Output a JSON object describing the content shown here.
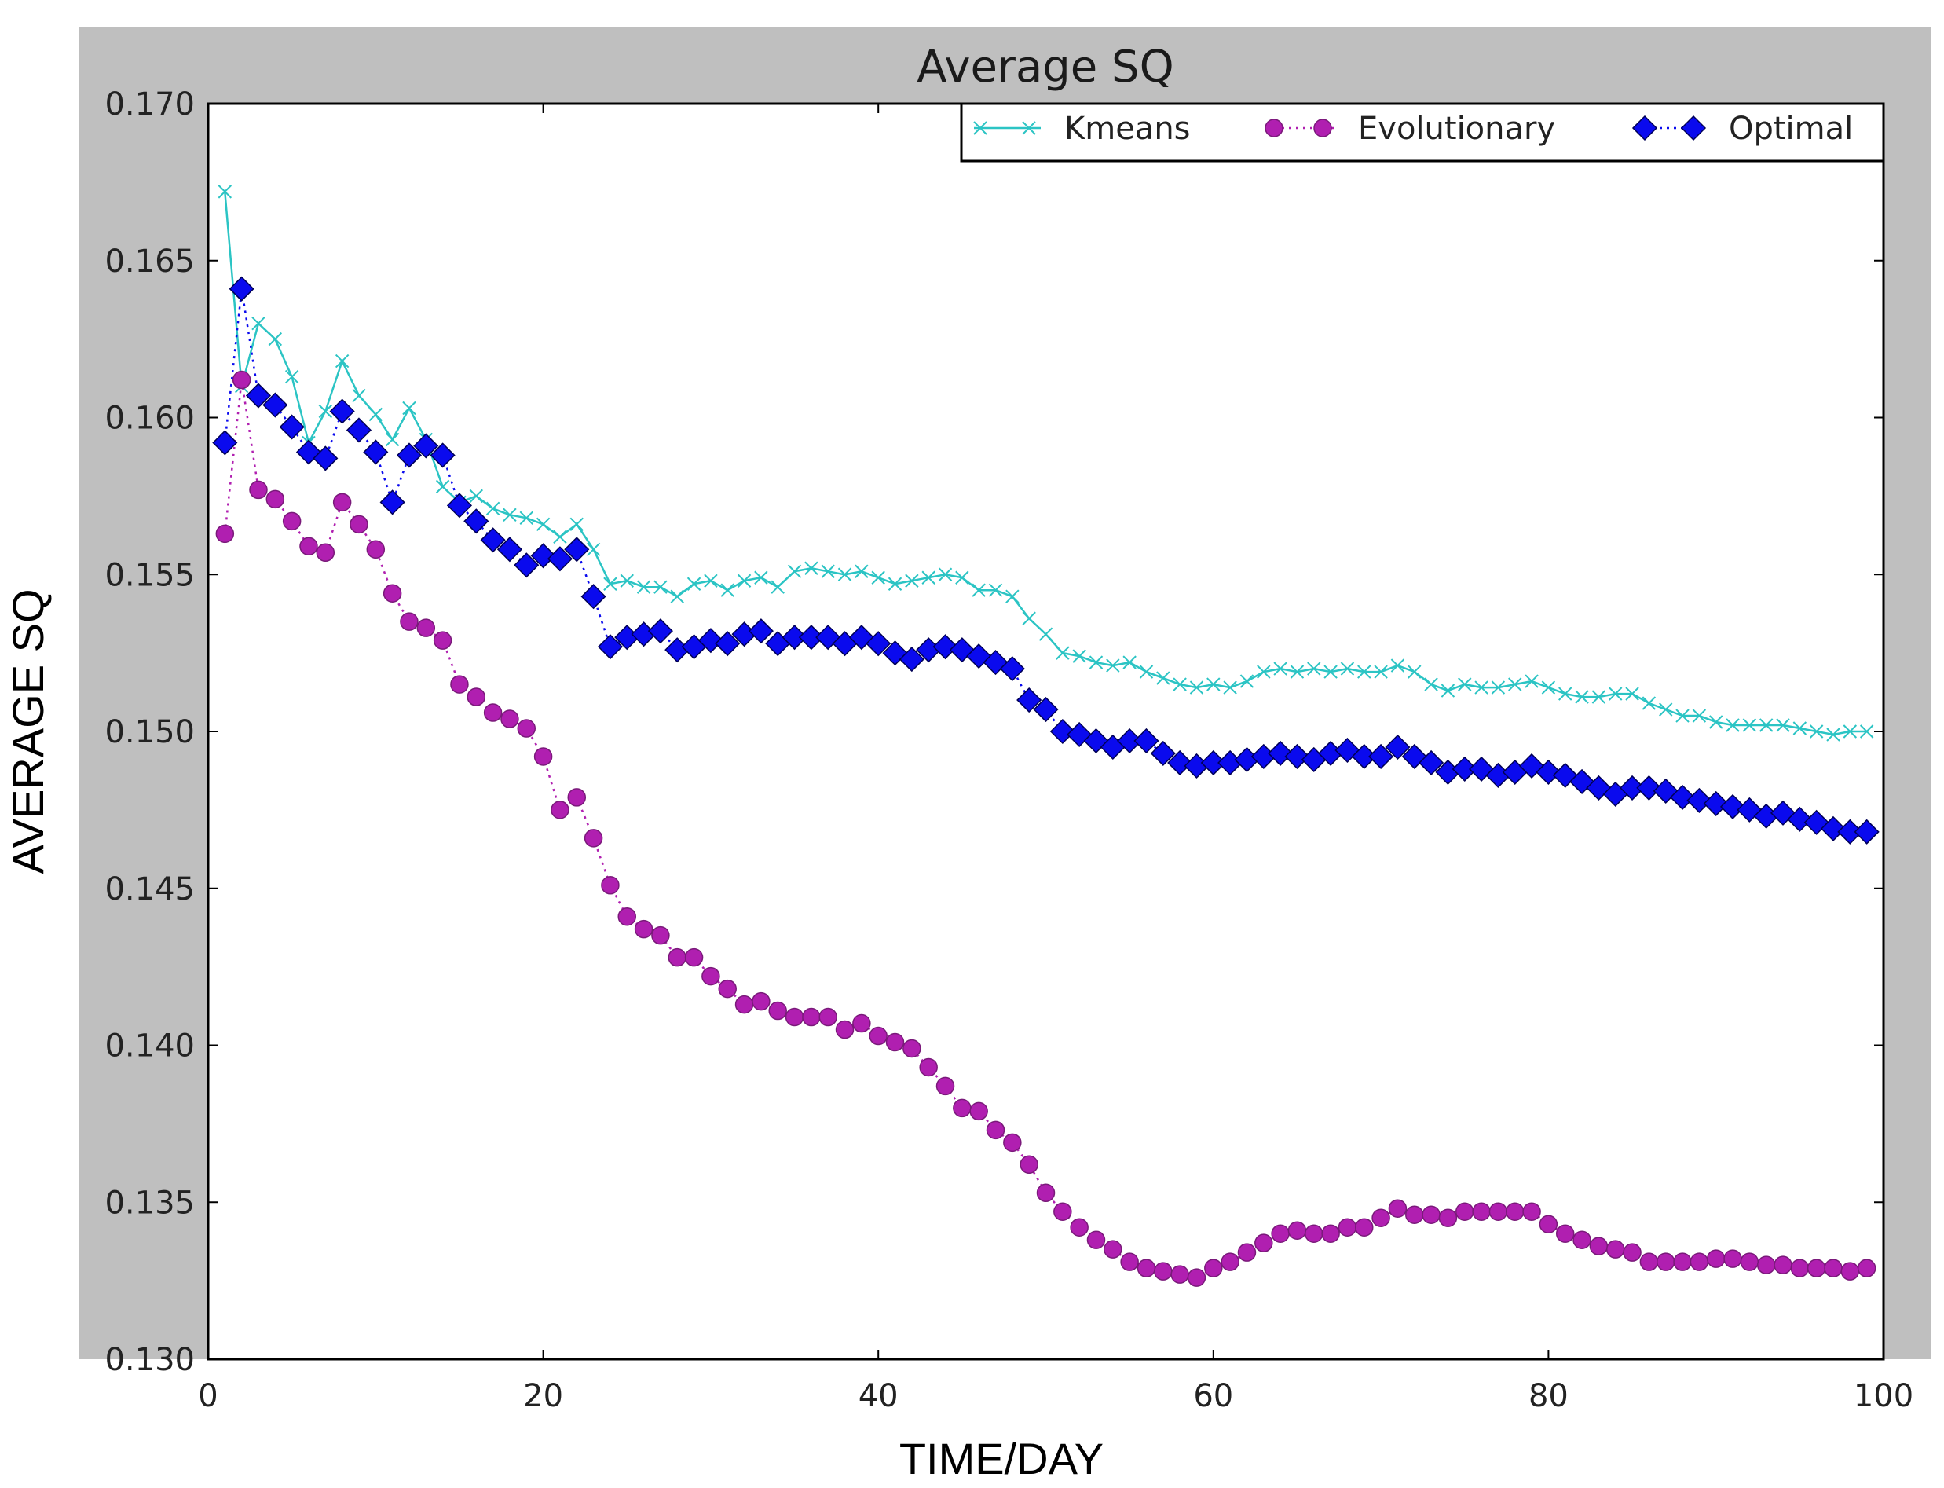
{
  "chart_data": {
    "type": "line",
    "title": "Average SQ",
    "xlabel": "TIME/DAY",
    "ylabel": "AVERAGE SQ",
    "xlim": [
      0,
      100
    ],
    "ylim": [
      0.13,
      0.17
    ],
    "xticks": [
      0,
      20,
      40,
      60,
      80,
      100
    ],
    "xtick_labels": [
      "0",
      "20",
      "40",
      "60",
      "80",
      "100"
    ],
    "yticks": [
      0.13,
      0.135,
      0.14,
      0.145,
      0.15,
      0.155,
      0.16,
      0.165,
      0.17
    ],
    "ytick_labels": [
      "0.130",
      "0.135",
      "0.140",
      "0.145",
      "0.150",
      "0.155",
      "0.160",
      "0.165",
      "0.170"
    ],
    "grid": false,
    "legend_position": "top-right",
    "x": [
      1,
      2,
      3,
      4,
      5,
      6,
      7,
      8,
      9,
      10,
      11,
      12,
      13,
      14,
      15,
      16,
      17,
      18,
      19,
      20,
      21,
      22,
      23,
      24,
      25,
      26,
      27,
      28,
      29,
      30,
      31,
      32,
      33,
      34,
      35,
      36,
      37,
      38,
      39,
      40,
      41,
      42,
      43,
      44,
      45,
      46,
      47,
      48,
      49,
      50,
      51,
      52,
      53,
      54,
      55,
      56,
      57,
      58,
      59,
      60,
      61,
      62,
      63,
      64,
      65,
      66,
      67,
      68,
      69,
      70,
      71,
      72,
      73,
      74,
      75,
      76,
      77,
      78,
      79,
      80,
      81,
      82,
      83,
      84,
      85,
      86,
      87,
      88,
      89,
      90,
      91,
      92,
      93,
      94,
      95,
      96,
      97,
      98,
      99
    ],
    "series": [
      {
        "name": "Kmeans",
        "color": "#2bc4c4",
        "marker": "x",
        "linestyle": "solid",
        "values": [
          0.1672,
          0.161,
          0.163,
          0.1625,
          0.1613,
          0.1592,
          0.1602,
          0.1618,
          0.1607,
          0.1601,
          0.1593,
          0.1603,
          0.1593,
          0.1578,
          0.1573,
          0.1575,
          0.1571,
          0.1569,
          0.1568,
          0.1566,
          0.1562,
          0.1566,
          0.1558,
          0.1547,
          0.1548,
          0.1546,
          0.1546,
          0.1543,
          0.1547,
          0.1548,
          0.1545,
          0.1548,
          0.1549,
          0.1546,
          0.1551,
          0.1552,
          0.1551,
          0.155,
          0.1551,
          0.1549,
          0.1547,
          0.1548,
          0.1549,
          0.155,
          0.1549,
          0.1545,
          0.1545,
          0.1543,
          0.1536,
          0.1531,
          0.1525,
          0.1524,
          0.1522,
          0.1521,
          0.1522,
          0.1519,
          0.1517,
          0.1515,
          0.1514,
          0.1515,
          0.1514,
          0.1516,
          0.1519,
          0.152,
          0.1519,
          0.152,
          0.1519,
          0.152,
          0.1519,
          0.1519,
          0.1521,
          0.1519,
          0.1515,
          0.1513,
          0.1515,
          0.1514,
          0.1514,
          0.1515,
          0.1516,
          0.1514,
          0.1512,
          0.1511,
          0.1511,
          0.1512,
          0.1512,
          0.1509,
          0.1507,
          0.1505,
          0.1505,
          0.1503,
          0.1502,
          0.1502,
          0.1502,
          0.1502,
          0.1501,
          0.15,
          0.1499,
          0.15,
          0.15
        ]
      },
      {
        "name": "Evolutionary",
        "color": "#b01fb0",
        "marker": "o",
        "linestyle": "dotted",
        "values": [
          0.1563,
          0.1612,
          0.1577,
          0.1574,
          0.1567,
          0.1559,
          0.1557,
          0.1573,
          0.1566,
          0.1558,
          0.1544,
          0.1535,
          0.1533,
          0.1529,
          0.1515,
          0.1511,
          0.1506,
          0.1504,
          0.1501,
          0.1492,
          0.1475,
          0.1479,
          0.1466,
          0.1451,
          0.1441,
          0.1437,
          0.1435,
          0.1428,
          0.1428,
          0.1422,
          0.1418,
          0.1413,
          0.1414,
          0.1411,
          0.1409,
          0.1409,
          0.1409,
          0.1405,
          0.1407,
          0.1403,
          0.1401,
          0.1399,
          0.1393,
          0.1387,
          0.138,
          0.1379,
          0.1373,
          0.1369,
          0.1362,
          0.1353,
          0.1347,
          0.1342,
          0.1338,
          0.1335,
          0.1331,
          0.1329,
          0.1328,
          0.1327,
          0.1326,
          0.1329,
          0.1331,
          0.1334,
          0.1337,
          0.134,
          0.1341,
          0.134,
          0.134,
          0.1342,
          0.1342,
          0.1345,
          0.1348,
          0.1346,
          0.1346,
          0.1345,
          0.1347,
          0.1347,
          0.1347,
          0.1347,
          0.1347,
          0.1343,
          0.134,
          0.1338,
          0.1336,
          0.1335,
          0.1334,
          0.1331,
          0.1331,
          0.1331,
          0.1331,
          0.1332,
          0.1332,
          0.1331,
          0.133,
          0.133,
          0.1329,
          0.1329,
          0.1329,
          0.1328,
          0.1329
        ]
      },
      {
        "name": "Optimal",
        "color": "#0a0aee",
        "marker": "D",
        "linestyle": "dotted",
        "values": [
          0.1592,
          0.1641,
          0.1607,
          0.1604,
          0.1597,
          0.1589,
          0.1587,
          0.1602,
          0.1596,
          0.1589,
          0.1573,
          0.1588,
          0.1591,
          0.1588,
          0.1572,
          0.1567,
          0.1561,
          0.1558,
          0.1553,
          0.1556,
          0.1555,
          0.1558,
          0.1543,
          0.1527,
          0.153,
          0.1531,
          0.1532,
          0.1526,
          0.1527,
          0.1529,
          0.1528,
          0.1531,
          0.1532,
          0.1528,
          0.153,
          0.153,
          0.153,
          0.1528,
          0.153,
          0.1528,
          0.1525,
          0.1523,
          0.1526,
          0.1527,
          0.1526,
          0.1524,
          0.1522,
          0.152,
          0.151,
          0.1507,
          0.15,
          0.1499,
          0.1497,
          0.1495,
          0.1497,
          0.1497,
          0.1493,
          0.149,
          0.1489,
          0.149,
          0.149,
          0.1491,
          0.1492,
          0.1493,
          0.1492,
          0.1491,
          0.1493,
          0.1494,
          0.1492,
          0.1492,
          0.1495,
          0.1492,
          0.149,
          0.1487,
          0.1488,
          0.1488,
          0.1486,
          0.1487,
          0.1489,
          0.1487,
          0.1486,
          0.1484,
          0.1482,
          0.148,
          0.1482,
          0.1482,
          0.1481,
          0.1479,
          0.1478,
          0.1477,
          0.1476,
          0.1475,
          0.1473,
          0.1474,
          0.1472,
          0.1471,
          0.1469,
          0.1468,
          0.1468
        ]
      }
    ]
  }
}
